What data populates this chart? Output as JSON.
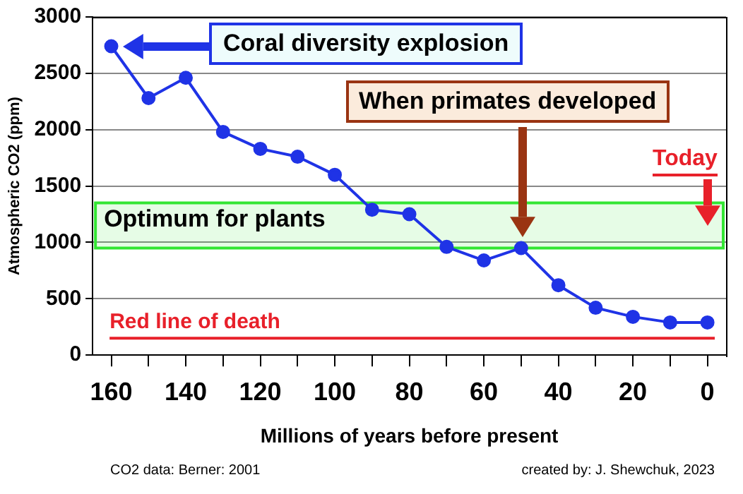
{
  "chart_data": {
    "type": "line",
    "xlabel": "Millions of years before present",
    "ylabel": "Atmospheric CO2 (ppm)",
    "x": [
      160,
      150,
      140,
      130,
      120,
      110,
      100,
      90,
      80,
      70,
      60,
      50,
      40,
      30,
      20,
      10,
      0
    ],
    "series": [
      {
        "color": "#1f33e6",
        "values": [
          2740,
          2280,
          2460,
          1980,
          1830,
          1760,
          1600,
          1290,
          1250,
          960,
          840,
          950,
          620,
          420,
          340,
          290,
          290
        ]
      }
    ],
    "xlim": [
      165,
      -5
    ],
    "xticks": [
      160,
      {
        "value": 150,
        "label": null
      },
      140,
      {
        "value": 130,
        "label": null
      },
      120,
      {
        "value": 110,
        "label": null
      },
      100,
      {
        "value": 90,
        "label": null
      },
      80,
      {
        "value": 70,
        "label": null
      },
      60,
      {
        "value": 50,
        "label": null
      },
      40,
      {
        "value": 30,
        "label": null
      },
      20,
      {
        "value": 10,
        "label": null
      },
      0
    ],
    "ylim": [
      0,
      3000
    ],
    "yticks": [
      0,
      500,
      1000,
      1500,
      2000,
      2500,
      3000
    ],
    "grid": "y",
    "marker": "circle",
    "line_style": "solid",
    "legend": false,
    "bands": [
      {
        "axis": "y",
        "from": 950,
        "to": 1350,
        "label": "Optimum for plants",
        "color": "#33e633"
      }
    ],
    "ref_lines": [
      {
        "axis": "y",
        "value": 150,
        "label": "Red line of death",
        "color": "#e8202a"
      }
    ],
    "annotations": [
      "Coral diversity explosion",
      "When primates developed",
      "Today",
      "CO2 data: Berner: 2001",
      "created by: J. Shewchuk, 2023"
    ]
  }
}
